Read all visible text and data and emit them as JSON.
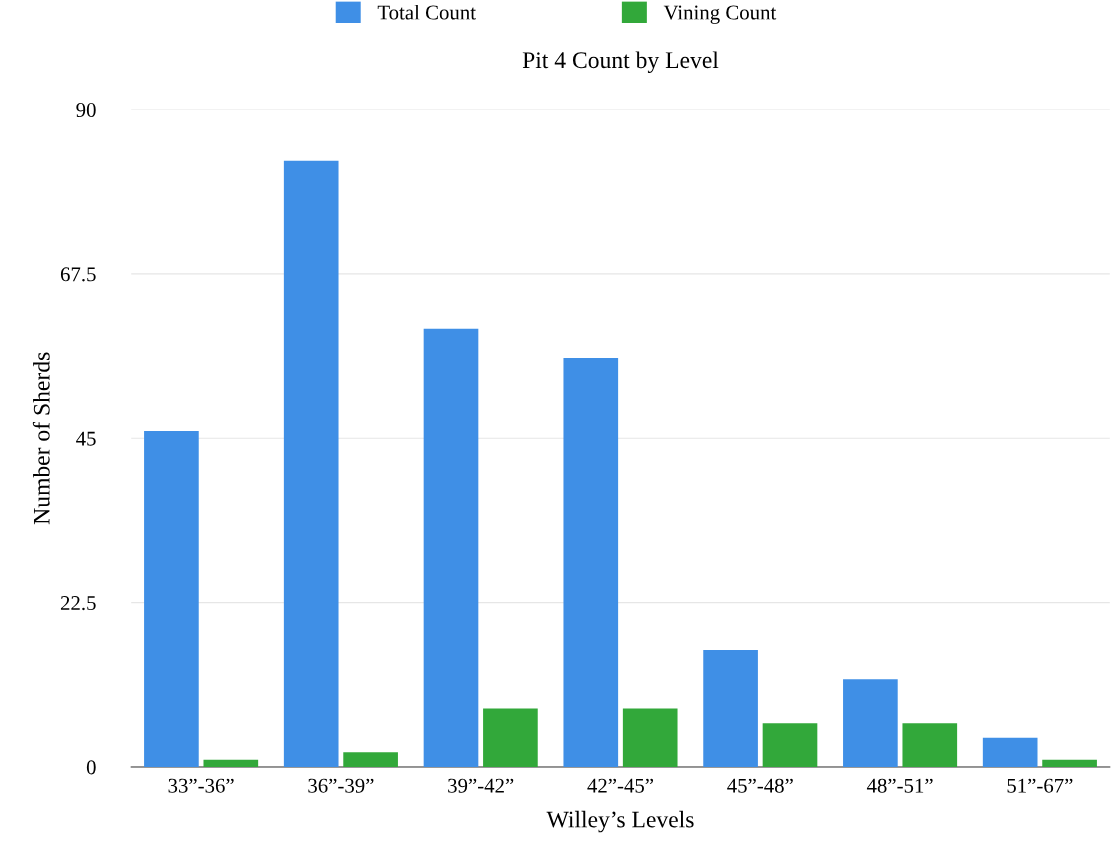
{
  "chart_data": {
    "type": "bar",
    "title": "Pit 4 Count by Level",
    "xlabel": "Willey’s Levels",
    "ylabel": "Number of Sherds",
    "categories": [
      "33”-36”",
      "36”-39”",
      "39”-42”",
      "42”-45”",
      "45”-48”",
      "48”-51”",
      "51”-67”"
    ],
    "series": [
      {
        "name": "Total Count",
        "color": "#3f8fe6",
        "values": [
          46,
          83,
          60,
          56,
          16,
          12,
          4
        ]
      },
      {
        "name": "Vining Count",
        "color": "#32a83a",
        "values": [
          1,
          2,
          8,
          8,
          6,
          6,
          1
        ]
      }
    ],
    "ylim": [
      0,
      90
    ],
    "yticks": [
      0,
      22.5,
      45,
      67.5,
      90
    ],
    "grid": "y",
    "legend": "top"
  }
}
